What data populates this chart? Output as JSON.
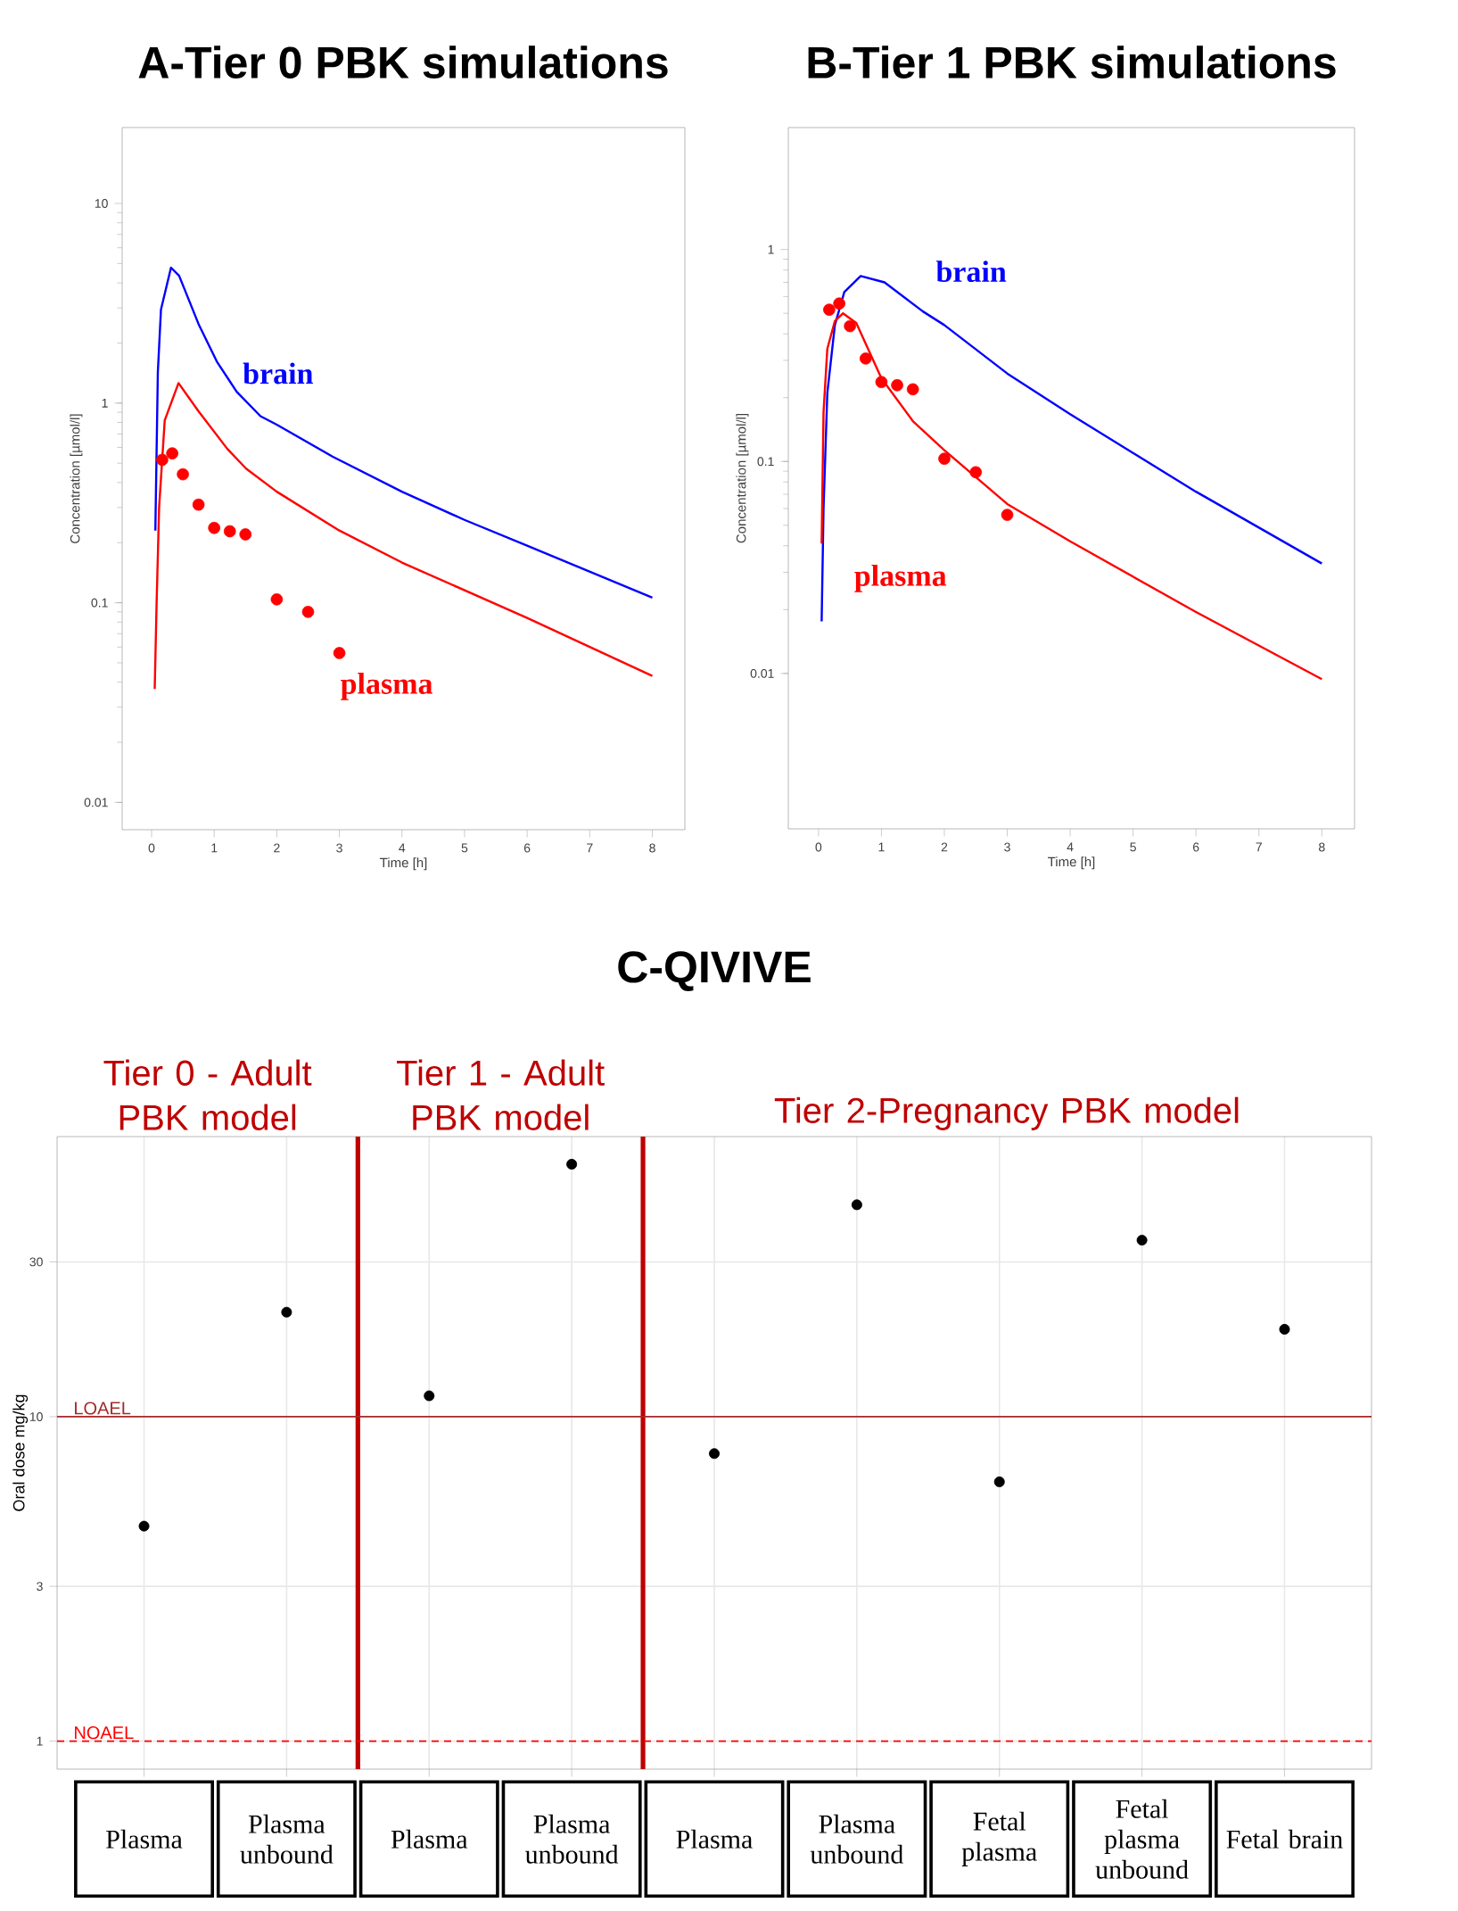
{
  "chart_data": [
    {
      "type": "line",
      "title": "A-Tier 0 PBK simulations",
      "xlabel": "Time [h]",
      "ylabel": "Concentration [µmol/l]",
      "log": "y",
      "xlim": [
        -0.47,
        8.52
      ],
      "ylim": [
        0.0073,
        24
      ],
      "xticks": [
        0,
        1,
        2,
        3,
        4,
        5,
        6,
        7,
        8
      ],
      "yticks": [
        0.01,
        0.1,
        1,
        10
      ],
      "series": [
        {
          "name": "brain",
          "color": "#0000ff",
          "type": "line",
          "x": [
            0.06,
            0.1,
            0.15,
            0.31,
            0.44,
            0.75,
            1.05,
            1.36,
            1.74,
            2.0,
            2.89,
            4.0,
            5.0,
            6.0,
            8.0
          ],
          "values": [
            0.23,
            1.43,
            2.94,
            4.77,
            4.34,
            2.49,
            1.6,
            1.14,
            0.86,
            0.78,
            0.54,
            0.36,
            0.26,
            0.193,
            0.106
          ]
        },
        {
          "name": "plasma",
          "color": "#ff0000",
          "type": "line",
          "x": [
            0.05,
            0.08,
            0.12,
            0.21,
            0.43,
            0.75,
            1.21,
            1.51,
            2.0,
            3.0,
            4.0,
            6.0,
            8.0
          ],
          "values": [
            0.037,
            0.099,
            0.3,
            0.82,
            1.26,
            0.91,
            0.59,
            0.47,
            0.36,
            0.23,
            0.159,
            0.084,
            0.043
          ]
        },
        {
          "color": "#ff0000",
          "type": "scatter",
          "marker": "circle",
          "x": [
            0.17,
            0.33,
            0.5,
            0.75,
            1.0,
            1.25,
            1.5,
            2.0,
            2.5,
            3.0
          ],
          "values": [
            0.52,
            0.56,
            0.44,
            0.31,
            0.237,
            0.228,
            0.22,
            0.104,
            0.09,
            0.056
          ]
        }
      ]
    },
    {
      "type": "line",
      "title": "B-Tier 1 PBK simulations",
      "xlabel": "Time [h]",
      "ylabel": "Concentration [µmol/l]",
      "log": "y",
      "xlim": [
        -0.48,
        8.52
      ],
      "ylim": [
        0.00185,
        3.76
      ],
      "xticks": [
        0,
        1,
        2,
        3,
        4,
        5,
        6,
        7,
        8
      ],
      "yticks": [
        0.01,
        0.1,
        1
      ],
      "series": [
        {
          "name": "brain",
          "color": "#0000ff",
          "type": "line",
          "x": [
            0.05,
            0.08,
            0.14,
            0.26,
            0.41,
            0.67,
            1.05,
            1.66,
            2.0,
            3.0,
            4.0,
            6.0,
            8.0
          ],
          "values": [
            0.0176,
            0.06,
            0.21,
            0.44,
            0.63,
            0.75,
            0.7,
            0.51,
            0.44,
            0.26,
            0.167,
            0.072,
            0.033
          ]
        },
        {
          "name": "plasma",
          "color": "#ff0000",
          "type": "line",
          "x": [
            0.05,
            0.08,
            0.14,
            0.26,
            0.39,
            0.6,
            1.0,
            1.5,
            2.0,
            3.0,
            4.0,
            6.0,
            8.0
          ],
          "values": [
            0.041,
            0.171,
            0.34,
            0.46,
            0.5,
            0.45,
            0.247,
            0.155,
            0.113,
            0.063,
            0.042,
            0.0195,
            0.0094
          ]
        },
        {
          "color": "#ff0000",
          "type": "scatter",
          "marker": "circle",
          "x": [
            0.17,
            0.33,
            0.5,
            0.75,
            1.0,
            1.25,
            1.5,
            2.0,
            2.5,
            3.0
          ],
          "values": [
            0.52,
            0.556,
            0.435,
            0.306,
            0.237,
            0.229,
            0.219,
            0.103,
            0.089,
            0.056
          ]
        }
      ]
    },
    {
      "type": "scatter",
      "title": "C-QIVIVE",
      "ylabel": "Oral dose mg/kg",
      "log": "y",
      "ylim": [
        0.82,
        73
      ],
      "yticks": [
        1,
        3,
        10,
        30
      ],
      "grid": true,
      "marker": "circle",
      "categories": [
        "Plasma",
        "Plasma unbound",
        "Plasma",
        "Plasma unbound",
        "Plasma",
        "Plasma unbound",
        "Fetal plasma",
        "Fetal plasma unbound",
        "Fetal brain"
      ],
      "series": [
        {
          "color": "#000000",
          "values": [
            4.6,
            21,
            11.6,
            60,
            7.7,
            45,
            6.3,
            35,
            18.6
          ]
        }
      ],
      "ref_lines": [
        {
          "axis": "y",
          "value": 10,
          "label": "LOAEL",
          "color": "#a52a2a",
          "line_style": "solid"
        },
        {
          "axis": "y",
          "value": 1,
          "label": "NOAEL",
          "color": "#ff0000",
          "line_style": "dashed"
        }
      ],
      "annotations": [
        "Tier 0 - Adult PBK model",
        "Tier 1 - Adult PBK model",
        "Tier 2-Pregnancy PBK model"
      ]
    }
  ]
}
